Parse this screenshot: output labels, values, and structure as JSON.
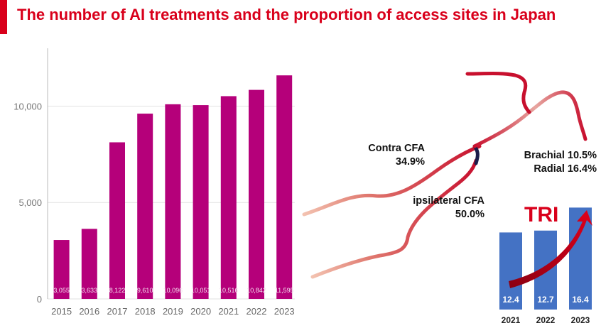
{
  "header": {
    "title": "The number of AI treatments and the proportion of access sites in Japan"
  },
  "colors": {
    "accent": "#d9001b",
    "bar": "#b5007a",
    "tri_bar": "#4472c4",
    "vessel": "#c8102e"
  },
  "chart_data": [
    {
      "type": "bar",
      "title": "",
      "categories": [
        "2015",
        "2016",
        "2017",
        "2018",
        "2019",
        "2020",
        "2021",
        "2022",
        "2023"
      ],
      "values": [
        3055,
        3633,
        8122,
        9610,
        10096,
        10051,
        10516,
        10842,
        11595
      ],
      "value_labels": [
        "3,055",
        "3,633",
        "8,122",
        "9,610",
        "10,096",
        "10,051",
        "10,516",
        "10,842",
        "11,595"
      ],
      "yticks": [
        0,
        5000,
        10000
      ],
      "ytick_labels": [
        "0",
        "5,000",
        "10,000"
      ],
      "ylim": [
        0,
        13000
      ],
      "xlabel": "",
      "ylabel": ""
    },
    {
      "type": "bar",
      "title": "TRI",
      "categories": [
        "2021",
        "2022",
        "2023"
      ],
      "values": [
        12.4,
        12.7,
        16.4
      ],
      "value_labels": [
        "12.4",
        "12.7",
        "16.4"
      ]
    }
  ],
  "access_sites": {
    "contra": {
      "name": "Contra CFA",
      "pct": "34.9%"
    },
    "ipsi": {
      "name": "ipsilateral CFA",
      "pct": "50.0%"
    },
    "brachial": "Brachial 10.5%",
    "radial": "Radial 16.4%"
  }
}
